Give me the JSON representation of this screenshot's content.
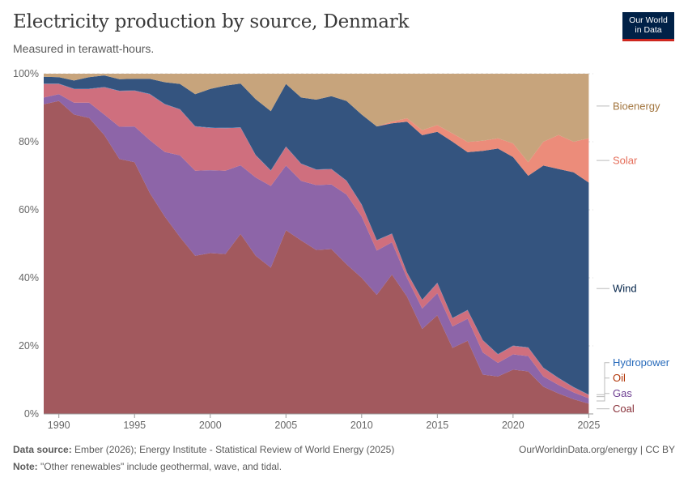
{
  "header": {
    "title": "Electricity production by source, Denmark",
    "subtitle": "Measured in terawatt-hours.",
    "logo_line1": "Our World",
    "logo_line2": "in Data"
  },
  "footer": {
    "source_label": "Data source:",
    "source_text": "Ember (2026); Energy Institute - Statistical Review of World Energy (2025)",
    "note_label": "Note:",
    "note_text": "\"Other renewables\" include geothermal, wave, and tidal.",
    "credit": "OurWorldinData.org/energy | CC BY"
  },
  "chart_data": {
    "type": "area",
    "stacked": true,
    "normalized": true,
    "x": [
      1989,
      1990,
      1991,
      1992,
      1993,
      1994,
      1995,
      1996,
      1997,
      1998,
      1999,
      2000,
      2001,
      2002,
      2003,
      2004,
      2005,
      2006,
      2007,
      2008,
      2009,
      2010,
      2011,
      2012,
      2013,
      2014,
      2015,
      2016,
      2017,
      2018,
      2019,
      2020,
      2021,
      2022,
      2023,
      2024,
      2025
    ],
    "xlim": [
      1989,
      2025.3
    ],
    "ylim": [
      0,
      100
    ],
    "x_ticks": [
      1990,
      1995,
      2000,
      2005,
      2010,
      2015,
      2020,
      2025
    ],
    "y_ticks": [
      0,
      20,
      40,
      60,
      80,
      100
    ],
    "y_tick_labels": [
      "0%",
      "20%",
      "40%",
      "60%",
      "80%",
      "100%"
    ],
    "grid": true,
    "legend_position": "right",
    "series": [
      {
        "name": "Coal",
        "color": "#a2595e",
        "label_color": "#883039",
        "values": [
          91,
          92,
          88,
          87,
          82,
          75,
          74,
          65,
          58,
          52,
          46.5,
          47.5,
          47,
          55,
          46.5,
          43,
          54,
          51,
          48,
          48.5,
          44,
          40,
          35,
          41,
          34.5,
          25,
          29,
          20,
          21.5,
          11.5,
          11,
          13,
          12.5,
          8,
          6,
          4.3,
          3
        ]
      },
      {
        "name": "Gas",
        "color": "#8d65a8",
        "label_color": "#6d3e91",
        "values": [
          2,
          2,
          3.5,
          4.5,
          6,
          9.5,
          10.5,
          15.5,
          19,
          24,
          25,
          24.5,
          24.5,
          21,
          23,
          24,
          19,
          17.5,
          19,
          19,
          20.5,
          18,
          13,
          9.5,
          5.5,
          6,
          6.5,
          6.5,
          6.5,
          6.5,
          4,
          4.5,
          4.5,
          3,
          2.5,
          2,
          1.6
        ]
      },
      {
        "name": "Oil",
        "color": "#cf6f7e",
        "label_color": "#b13507",
        "values": [
          4,
          3,
          4,
          4,
          8,
          10.5,
          10.5,
          13.5,
          14,
          13.5,
          13,
          12.5,
          12.5,
          11.5,
          6.5,
          4.5,
          5.5,
          5,
          4.5,
          4.5,
          4,
          3.5,
          3,
          2.5,
          1.5,
          2.5,
          3,
          2.5,
          2.5,
          3.5,
          2.5,
          2.5,
          2.5,
          2.5,
          2,
          1.5,
          1
        ]
      },
      {
        "name": "Hydropower",
        "color": "#4a7fbf",
        "label_color": "#286bbb",
        "values": [
          0.1,
          0.1,
          0.1,
          0.1,
          0.1,
          0.1,
          0.1,
          0.1,
          0.1,
          0.1,
          0.1,
          0.1,
          0.1,
          0.1,
          0.1,
          0.1,
          0.1,
          0.1,
          0.1,
          0.1,
          0.1,
          0.1,
          0.1,
          0.1,
          0.1,
          0.1,
          0.1,
          0.1,
          0.1,
          0.1,
          0.1,
          0.1,
          0.1,
          0.1,
          0.1,
          0.1,
          0.1
        ]
      },
      {
        "name": "Wind",
        "color": "#34547f",
        "label_color": "#002147",
        "values": [
          2,
          1.9,
          2.4,
          3.4,
          3.4,
          3.4,
          3.4,
          4.4,
          6.4,
          7.4,
          9.4,
          11.4,
          12.4,
          13.4,
          16.4,
          17.4,
          18.4,
          19.4,
          20.4,
          21.4,
          23.4,
          26.4,
          33.4,
          32.4,
          44.4,
          48.4,
          44.4,
          53.4,
          46.4,
          55.4,
          60.4,
          55.4,
          50.4,
          59.4,
          61.4,
          63.1,
          62.3
        ]
      },
      {
        "name": "Solar",
        "color": "#ec8c7a",
        "label_color": "#e56e5a",
        "values": [
          0,
          0,
          0,
          0,
          0,
          0,
          0,
          0,
          0,
          0,
          0,
          0,
          0,
          0,
          0,
          0,
          0,
          0,
          0,
          0,
          0,
          0,
          0,
          0.5,
          1,
          1.5,
          2,
          2.5,
          3,
          3,
          3,
          4,
          4,
          7,
          10,
          9,
          13
        ]
      },
      {
        "name": "Bioenergy",
        "color": "#c7a47c",
        "label_color": "#a2753e",
        "values": [
          0.9,
          1,
          2,
          1,
          0.5,
          1.6,
          1.5,
          1.5,
          2.5,
          3,
          6,
          4.5,
          3.5,
          3,
          7.5,
          11,
          3,
          7,
          7.6,
          6.6,
          8,
          12,
          15.5,
          14.1,
          13.1,
          16.6,
          15.1,
          18.1,
          20.1,
          19.6,
          19,
          20.5,
          26,
          20,
          18,
          20,
          19
        ]
      }
    ]
  }
}
